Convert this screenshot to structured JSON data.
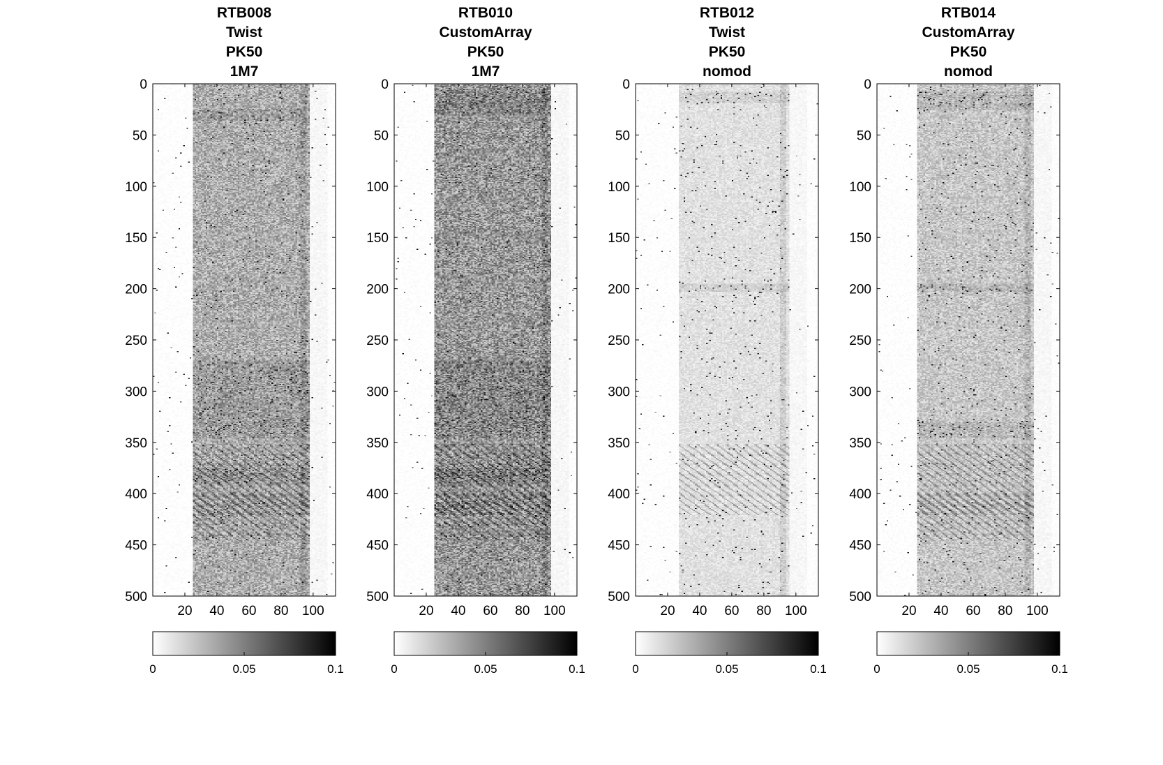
{
  "chart_data": [
    {
      "type": "heatmap",
      "title": [
        "RTB008",
        "Twist",
        "PK50",
        "1M7"
      ],
      "x_ticks": [
        20,
        40,
        60,
        80,
        100
      ],
      "y_ticks": [
        0,
        50,
        100,
        150,
        200,
        250,
        300,
        350,
        400,
        450,
        500
      ],
      "xlim": [
        0,
        114
      ],
      "ylim": [
        0,
        500
      ],
      "y_reversed": true,
      "colormap": "gray-reversed",
      "clim": [
        0,
        0.1
      ],
      "colorbar_ticks": [
        "0",
        "0.05",
        "0.1"
      ],
      "colorbar_location": "bottom",
      "signal_columns": [
        25,
        97
      ],
      "level": 0.032,
      "dark_bands": [
        [
          25,
          35
        ],
        [
          270,
          345
        ],
        [
          375,
          390
        ]
      ],
      "diagonal_bands": [
        [
          352,
          420
        ],
        [
          400,
          445
        ]
      ]
    },
    {
      "type": "heatmap",
      "title": [
        "RTB010",
        "CustomArray",
        "PK50",
        "1M7"
      ],
      "x_ticks": [
        20,
        40,
        60,
        80,
        100
      ],
      "y_ticks": [
        0,
        50,
        100,
        150,
        200,
        250,
        300,
        350,
        400,
        450,
        500
      ],
      "xlim": [
        0,
        114
      ],
      "ylim": [
        0,
        500
      ],
      "y_reversed": true,
      "colormap": "gray-reversed",
      "clim": [
        0,
        0.1
      ],
      "colorbar_ticks": [
        "0",
        "0.05",
        "0.1"
      ],
      "colorbar_location": "bottom",
      "signal_columns": [
        25,
        97
      ],
      "level": 0.04,
      "dark_bands": [
        [
          5,
          30
        ],
        [
          270,
          345
        ],
        [
          375,
          390
        ]
      ],
      "diagonal_bands": [
        [
          352,
          420
        ],
        [
          400,
          445
        ]
      ]
    },
    {
      "type": "heatmap",
      "title": [
        "RTB012",
        "Twist",
        "PK50",
        "nomod"
      ],
      "x_ticks": [
        20,
        40,
        60,
        80,
        100
      ],
      "y_ticks": [
        0,
        50,
        100,
        150,
        200,
        250,
        300,
        350,
        400,
        450,
        500
      ],
      "xlim": [
        0,
        114
      ],
      "ylim": [
        0,
        500
      ],
      "y_reversed": true,
      "colormap": "gray-reversed",
      "clim": [
        0,
        0.1
      ],
      "colorbar_ticks": [
        "0",
        "0.05",
        "0.1"
      ],
      "colorbar_location": "bottom",
      "signal_columns": [
        27,
        95
      ],
      "level": 0.012,
      "dark_bands": [
        [
          8,
          18
        ],
        [
          195,
          202
        ]
      ],
      "diagonal_bands": [
        [
          352,
          420
        ]
      ]
    },
    {
      "type": "heatmap",
      "title": [
        "RTB014",
        "CustomArray",
        "PK50",
        "nomod"
      ],
      "x_ticks": [
        20,
        40,
        60,
        80,
        100
      ],
      "y_ticks": [
        0,
        50,
        100,
        150,
        200,
        250,
        300,
        350,
        400,
        450,
        500
      ],
      "xlim": [
        0,
        114
      ],
      "ylim": [
        0,
        500
      ],
      "y_reversed": true,
      "colormap": "gray-reversed",
      "clim": [
        0,
        0.1
      ],
      "colorbar_ticks": [
        "0",
        "0.05",
        "0.1"
      ],
      "colorbar_location": "bottom",
      "signal_columns": [
        25,
        97
      ],
      "level": 0.022,
      "dark_bands": [
        [
          8,
          25
        ],
        [
          195,
          202
        ],
        [
          330,
          345
        ]
      ],
      "diagonal_bands": [
        [
          352,
          420
        ],
        [
          400,
          445
        ]
      ]
    }
  ]
}
